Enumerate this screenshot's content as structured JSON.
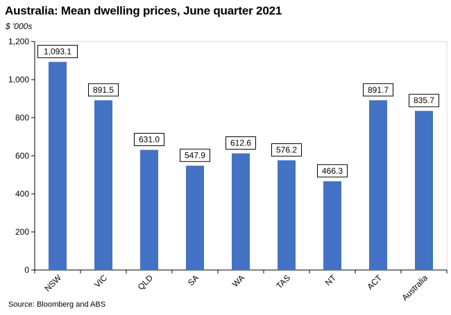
{
  "chart_data": {
    "type": "bar",
    "title": "Australia: Mean dwelling prices, June quarter 2021",
    "subtitle": "$ '000s",
    "categories": [
      "NSW",
      "VIC",
      "QLD",
      "SA",
      "WA",
      "TAS",
      "NT",
      "ACT",
      "Australia"
    ],
    "values": [
      1093.1,
      891.5,
      631.0,
      547.9,
      612.6,
      576.2,
      466.3,
      891.7,
      835.7
    ],
    "value_labels": [
      "1,093.1",
      "891.5",
      "631.0",
      "547.9",
      "612.6",
      "576.2",
      "466.3",
      "891.7",
      "835.7"
    ],
    "ylim": [
      0,
      1200
    ],
    "yticks": [
      0,
      200,
      400,
      600,
      800,
      1000,
      1200
    ],
    "ytick_labels": [
      "0",
      "200",
      "400",
      "600",
      "800",
      "1,000",
      "1,200"
    ],
    "grid": false,
    "bar_color": "#4472C4",
    "source": "Source: Bloomberg and ABS"
  }
}
